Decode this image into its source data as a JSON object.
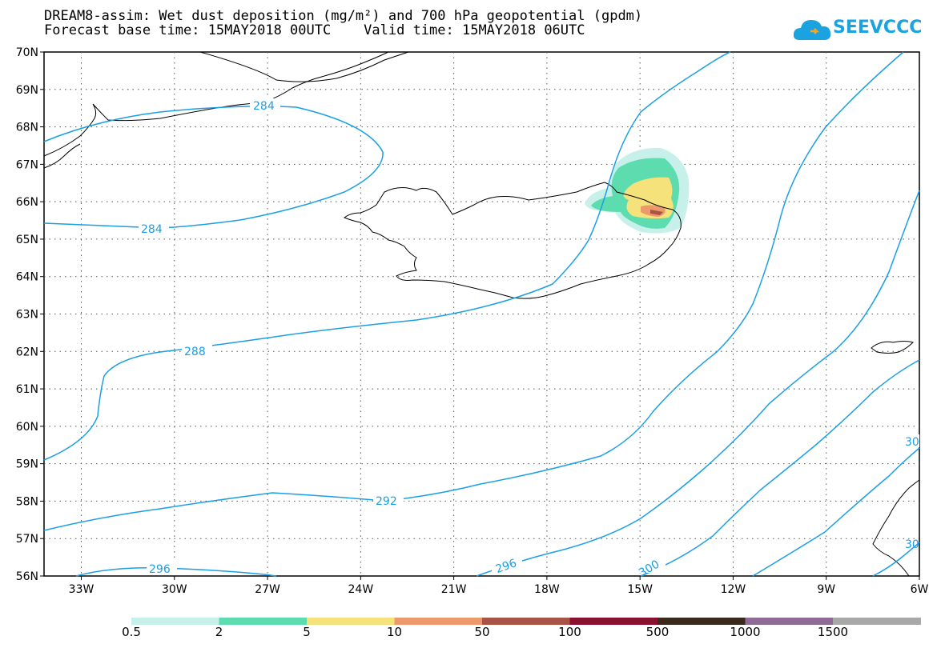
{
  "title": {
    "line1": "DREAM8-assim: Wet dust deposition (mg/m²) and 700 hPa geopotential (gpdm)",
    "line2": "Forecast base time: 15MAY2018 00UTC    Valid time: 15MAY2018 06UTC"
  },
  "logo": {
    "text": "SEEVCCC"
  },
  "axes": {
    "lat_labels": [
      "70N",
      "69N",
      "68N",
      "67N",
      "66N",
      "65N",
      "64N",
      "63N",
      "62N",
      "61N",
      "60N",
      "59N",
      "58N",
      "57N",
      "56N"
    ],
    "lon_labels": [
      "33W",
      "30W",
      "27W",
      "24W",
      "21W",
      "18W",
      "15W",
      "12W",
      "9W",
      "6W"
    ],
    "lat_range": [
      56,
      70
    ],
    "lon_range": [
      -34.2,
      -6
    ],
    "grid": "dotted"
  },
  "contours": {
    "color": "#1a9fe6",
    "labels": [
      "284",
      "284",
      "288",
      "292",
      "296",
      "296",
      "300",
      "30",
      "30"
    ]
  },
  "legend": {
    "colors": [
      "#c8f0ea",
      "#5ddcb0",
      "#f5e27a",
      "#ec9a6b",
      "#a95347",
      "#8a1030",
      "#3a2a1e",
      "#8e6b95",
      "#a8a8a8"
    ],
    "labels": [
      "0.5",
      "2",
      "5",
      "10",
      "50",
      "100",
      "500",
      "1000",
      "1500"
    ]
  }
}
